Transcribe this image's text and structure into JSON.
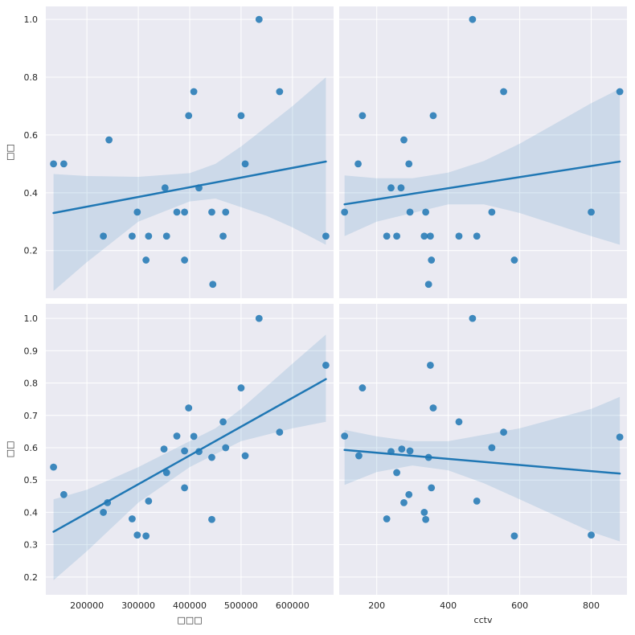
{
  "chart_data": {
    "type": "scatter",
    "layout": "2x2 regression grid with shared axes per row/column",
    "style": {
      "background": "#eaeaf2",
      "grid_color": "#ffffff",
      "point_color": "#1f77b4",
      "line_color": "#1f77b4",
      "band_color": "#1f77b4",
      "grid": true
    },
    "columns": [
      {
        "xlabel": "□□□",
        "xlim": [
          120000,
          680000
        ],
        "xticks": [
          200000,
          300000,
          400000,
          500000,
          600000
        ],
        "xtick_labels": [
          "200000",
          "300000",
          "400000",
          "500000",
          "600000"
        ]
      },
      {
        "xlabel": "cctv",
        "xlim": [
          95,
          900
        ],
        "xticks": [
          200,
          400,
          600,
          800
        ],
        "xtick_labels": [
          "200",
          "400",
          "600",
          "800"
        ]
      }
    ],
    "rows": [
      {
        "ylabel": "□□",
        "ylim": [
          0.035,
          1.045
        ],
        "yticks": [
          0.2,
          0.4,
          0.6,
          0.8,
          1.0
        ],
        "ytick_labels": [
          "0.2",
          "0.4",
          "0.6",
          "0.8",
          "1.0"
        ]
      },
      {
        "ylabel": "□□",
        "ylim": [
          0.145,
          1.045
        ],
        "yticks": [
          0.2,
          0.3,
          0.4,
          0.5,
          0.6,
          0.7,
          0.8,
          0.9,
          1.0
        ],
        "ytick_labels": [
          "0.2",
          "0.3",
          "0.4",
          "0.5",
          "0.6",
          "0.7",
          "0.8",
          "0.9",
          "1.0"
        ]
      }
    ],
    "panels": [
      {
        "row": 0,
        "col": 0,
        "points": [
          [
            135000,
            0.5
          ],
          [
            155000,
            0.5
          ],
          [
            232000,
            0.25
          ],
          [
            243000,
            0.583
          ],
          [
            288000,
            0.25
          ],
          [
            298000,
            0.333
          ],
          [
            315000,
            0.167
          ],
          [
            320000,
            0.25
          ],
          [
            352000,
            0.417
          ],
          [
            355000,
            0.25
          ],
          [
            375000,
            0.333
          ],
          [
            390000,
            0.333
          ],
          [
            390000,
            0.167
          ],
          [
            398000,
            0.667
          ],
          [
            408000,
            0.75
          ],
          [
            418000,
            0.417
          ],
          [
            443000,
            0.333
          ],
          [
            445000,
            0.083
          ],
          [
            465000,
            0.25
          ],
          [
            470000,
            0.333
          ],
          [
            500000,
            0.667
          ],
          [
            508000,
            0.5
          ],
          [
            535000,
            1.0
          ],
          [
            575000,
            0.75
          ],
          [
            665000,
            0.25
          ]
        ],
        "fit": [
          [
            135000,
            0.33
          ],
          [
            665000,
            0.508
          ]
        ],
        "ci_upper": [
          [
            135000,
            0.465
          ],
          [
            200000,
            0.458
          ],
          [
            300000,
            0.455
          ],
          [
            400000,
            0.468
          ],
          [
            450000,
            0.5
          ],
          [
            500000,
            0.56
          ],
          [
            550000,
            0.63
          ],
          [
            600000,
            0.7
          ],
          [
            665000,
            0.8
          ]
        ],
        "ci_lower": [
          [
            135000,
            0.06
          ],
          [
            200000,
            0.16
          ],
          [
            300000,
            0.3
          ],
          [
            400000,
            0.37
          ],
          [
            450000,
            0.38
          ],
          [
            500000,
            0.35
          ],
          [
            550000,
            0.32
          ],
          [
            600000,
            0.28
          ],
          [
            665000,
            0.22
          ]
        ]
      },
      {
        "row": 0,
        "col": 1,
        "points": [
          [
            110,
            0.333
          ],
          [
            148,
            0.5
          ],
          [
            160,
            0.667
          ],
          [
            228,
            0.25
          ],
          [
            240,
            0.417
          ],
          [
            256,
            0.25
          ],
          [
            268,
            0.417
          ],
          [
            276,
            0.583
          ],
          [
            290,
            0.5
          ],
          [
            293,
            0.333
          ],
          [
            333,
            0.25
          ],
          [
            337,
            0.333
          ],
          [
            345,
            0.083
          ],
          [
            350,
            0.25
          ],
          [
            353,
            0.167
          ],
          [
            358,
            0.667
          ],
          [
            430,
            0.25
          ],
          [
            468,
            1.0
          ],
          [
            480,
            0.25
          ],
          [
            522,
            0.333
          ],
          [
            555,
            0.75
          ],
          [
            585,
            0.167
          ],
          [
            800,
            0.333
          ],
          [
            880,
            0.75
          ]
        ],
        "fit": [
          [
            110,
            0.36
          ],
          [
            880,
            0.508
          ]
        ],
        "ci_upper": [
          [
            110,
            0.46
          ],
          [
            200,
            0.45
          ],
          [
            300,
            0.45
          ],
          [
            400,
            0.47
          ],
          [
            500,
            0.51
          ],
          [
            600,
            0.57
          ],
          [
            700,
            0.64
          ],
          [
            800,
            0.71
          ],
          [
            880,
            0.76
          ]
        ],
        "ci_lower": [
          [
            110,
            0.25
          ],
          [
            200,
            0.3
          ],
          [
            300,
            0.33
          ],
          [
            400,
            0.36
          ],
          [
            500,
            0.36
          ],
          [
            600,
            0.33
          ],
          [
            700,
            0.29
          ],
          [
            800,
            0.25
          ],
          [
            880,
            0.22
          ]
        ]
      },
      {
        "row": 1,
        "col": 0,
        "points": [
          [
            135000,
            0.54
          ],
          [
            155000,
            0.455
          ],
          [
            232000,
            0.4
          ],
          [
            240000,
            0.43
          ],
          [
            288000,
            0.38
          ],
          [
            298000,
            0.33
          ],
          [
            315000,
            0.327
          ],
          [
            320000,
            0.435
          ],
          [
            350000,
            0.596
          ],
          [
            355000,
            0.523
          ],
          [
            375000,
            0.636
          ],
          [
            390000,
            0.59
          ],
          [
            390000,
            0.476
          ],
          [
            398000,
            0.723
          ],
          [
            408000,
            0.635
          ],
          [
            418000,
            0.588
          ],
          [
            443000,
            0.57
          ],
          [
            443000,
            0.378
          ],
          [
            465000,
            0.68
          ],
          [
            470000,
            0.6
          ],
          [
            500000,
            0.785
          ],
          [
            508000,
            0.575
          ],
          [
            535000,
            1.0
          ],
          [
            575000,
            0.648
          ],
          [
            665000,
            0.855
          ]
        ],
        "fit": [
          [
            135000,
            0.34
          ],
          [
            665000,
            0.812
          ]
        ],
        "ci_upper": [
          [
            135000,
            0.44
          ],
          [
            200000,
            0.47
          ],
          [
            300000,
            0.54
          ],
          [
            400000,
            0.62
          ],
          [
            450000,
            0.66
          ],
          [
            500000,
            0.72
          ],
          [
            550000,
            0.79
          ],
          [
            600000,
            0.86
          ],
          [
            665000,
            0.95
          ]
        ],
        "ci_lower": [
          [
            135000,
            0.19
          ],
          [
            200000,
            0.28
          ],
          [
            300000,
            0.43
          ],
          [
            400000,
            0.54
          ],
          [
            450000,
            0.58
          ],
          [
            500000,
            0.62
          ],
          [
            550000,
            0.64
          ],
          [
            600000,
            0.66
          ],
          [
            665000,
            0.68
          ]
        ]
      },
      {
        "row": 1,
        "col": 1,
        "points": [
          [
            110,
            0.636
          ],
          [
            150,
            0.575
          ],
          [
            160,
            0.785
          ],
          [
            228,
            0.38
          ],
          [
            240,
            0.588
          ],
          [
            256,
            0.523
          ],
          [
            270,
            0.596
          ],
          [
            276,
            0.43
          ],
          [
            290,
            0.455
          ],
          [
            293,
            0.59
          ],
          [
            333,
            0.4
          ],
          [
            337,
            0.378
          ],
          [
            345,
            0.57
          ],
          [
            350,
            0.855
          ],
          [
            353,
            0.476
          ],
          [
            358,
            0.723
          ],
          [
            430,
            0.68
          ],
          [
            468,
            1.0
          ],
          [
            480,
            0.435
          ],
          [
            522,
            0.6
          ],
          [
            555,
            0.648
          ],
          [
            585,
            0.327
          ],
          [
            800,
            0.33
          ],
          [
            880,
            0.633
          ]
        ],
        "fit": [
          [
            110,
            0.593
          ],
          [
            880,
            0.52
          ]
        ],
        "ci_upper": [
          [
            110,
            0.655
          ],
          [
            200,
            0.635
          ],
          [
            300,
            0.62
          ],
          [
            400,
            0.62
          ],
          [
            500,
            0.64
          ],
          [
            600,
            0.66
          ],
          [
            700,
            0.69
          ],
          [
            800,
            0.72
          ],
          [
            880,
            0.757
          ]
        ],
        "ci_lower": [
          [
            110,
            0.485
          ],
          [
            200,
            0.525
          ],
          [
            300,
            0.545
          ],
          [
            400,
            0.53
          ],
          [
            500,
            0.49
          ],
          [
            600,
            0.44
          ],
          [
            700,
            0.39
          ],
          [
            800,
            0.34
          ],
          [
            880,
            0.31
          ]
        ]
      }
    ]
  }
}
